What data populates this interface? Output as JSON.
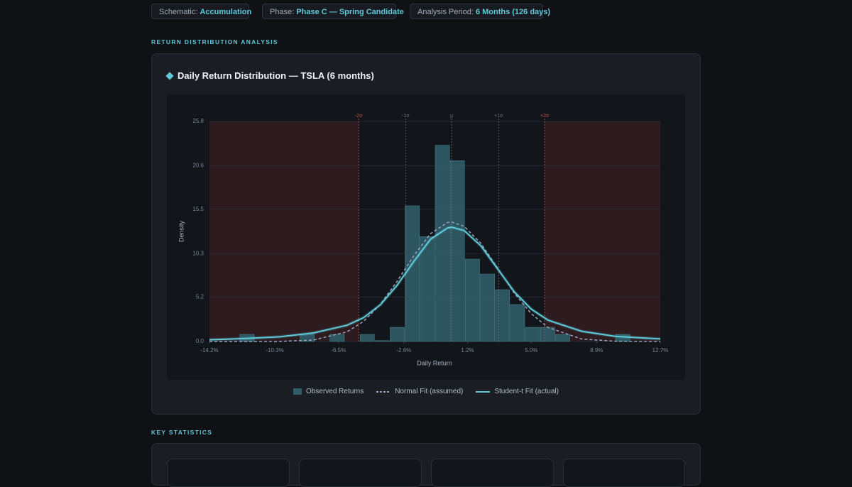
{
  "pills": [
    {
      "label": "Schematic:",
      "value": "Accumulation"
    },
    {
      "label": "Phase:",
      "value": "Phase C — Spring Candidate"
    },
    {
      "label": "Analysis Period:",
      "value": "6 Months (126 days)"
    }
  ],
  "section_title": "RETURN DISTRIBUTION ANALYSIS",
  "stats_title": "KEY STATISTICS",
  "chart_data": {
    "type": "histogram",
    "title": "Daily Return Distribution — TSLA (6 months)",
    "x_label": "Daily Return",
    "y_label": "Density",
    "bar_name": "Observed Returns",
    "color": "#2f5d68",
    "bins": [
      -14.2,
      -13.3,
      -12.41,
      -11.51,
      -10.61,
      -9.72,
      -8.82,
      -7.92,
      -7.03,
      -6.13,
      -5.23,
      -4.34,
      -3.44,
      -2.54,
      -1.65,
      -0.75,
      0.15,
      1.04,
      1.94,
      2.84,
      3.73,
      4.63,
      5.53,
      6.42,
      7.32,
      8.22,
      9.11,
      10.01,
      10.91,
      11.8,
      12.7
    ],
    "values": [
      0,
      0,
      0.83,
      0,
      0,
      0,
      0.83,
      0,
      0.83,
      0,
      0.83,
      0.1,
      1.66,
      15.9,
      12.3,
      23.0,
      21.2,
      9.65,
      7.9,
      6.07,
      4.33,
      1.66,
      1.66,
      0.83,
      0,
      0,
      0,
      0.83,
      0,
      0
    ],
    "series": [
      {
        "name": "Normal Fit (assumed)",
        "color": "#9aa3c0",
        "dashed": true,
        "x": [
          -14.2,
          -12,
          -10,
          -8,
          -6,
          -5,
          -4,
          -3,
          -2,
          -1,
          0,
          0.25,
          1,
          2,
          3,
          4,
          5,
          6,
          8,
          10,
          12.7
        ],
        "values": [
          0,
          0,
          0.02,
          0.17,
          1.12,
          2.36,
          4.36,
          7.07,
          10.07,
          12.66,
          13.94,
          14,
          13.5,
          11.49,
          8.58,
          5.64,
          3.26,
          1.65,
          0.29,
          0.03,
          0
        ]
      },
      {
        "name": "Student-t Fit (actual)",
        "color": "#5fc9d8",
        "dashed": false,
        "x": [
          -14.2,
          -12,
          -10,
          -8,
          -6,
          -5,
          -4,
          -3,
          -2,
          -1,
          0,
          0.25,
          1,
          2,
          3,
          4,
          5,
          6,
          8,
          10,
          12.7
        ],
        "values": [
          0.2,
          0.35,
          0.55,
          1.0,
          1.9,
          2.8,
          4.3,
          6.6,
          9.4,
          12.0,
          13.3,
          13.4,
          13.0,
          11.2,
          8.5,
          5.8,
          3.8,
          2.5,
          1.2,
          0.6,
          0.3
        ]
      }
    ],
    "annotations": [
      {
        "label": "-2σ",
        "x": -5.3,
        "color": "#c0564b"
      },
      {
        "label": "-1σ",
        "x": -2.5,
        "color": "#6b7280"
      },
      {
        "label": "μ",
        "x": 0.25,
        "color": "#6b7280"
      },
      {
        "label": "+1σ",
        "x": 3.05,
        "color": "#6b7280"
      },
      {
        "label": "+2σ",
        "x": 5.8,
        "color": "#c0564b"
      }
    ],
    "tail_color": "#3a1e24",
    "xlim": [
      -14.2,
      12.7
    ],
    "xticks": [
      {
        "value": -14.2,
        "label": "-14.2%"
      },
      {
        "value": -10.3,
        "label": "-10.3%"
      },
      {
        "value": -6.5,
        "label": "-6.5%"
      },
      {
        "value": -2.6,
        "label": "-2.6%"
      },
      {
        "value": 1.2,
        "label": "1.2%"
      },
      {
        "value": 5.0,
        "label": "5.0%"
      },
      {
        "value": 8.9,
        "label": "8.9%"
      },
      {
        "value": 12.7,
        "label": "12.7%"
      }
    ],
    "ylim": [
      0,
      25.8
    ],
    "yticks": [
      {
        "value": 0,
        "label": "0.0"
      },
      5.2,
      10.3,
      15.5,
      20.6,
      25.8
    ],
    "grid": true
  }
}
